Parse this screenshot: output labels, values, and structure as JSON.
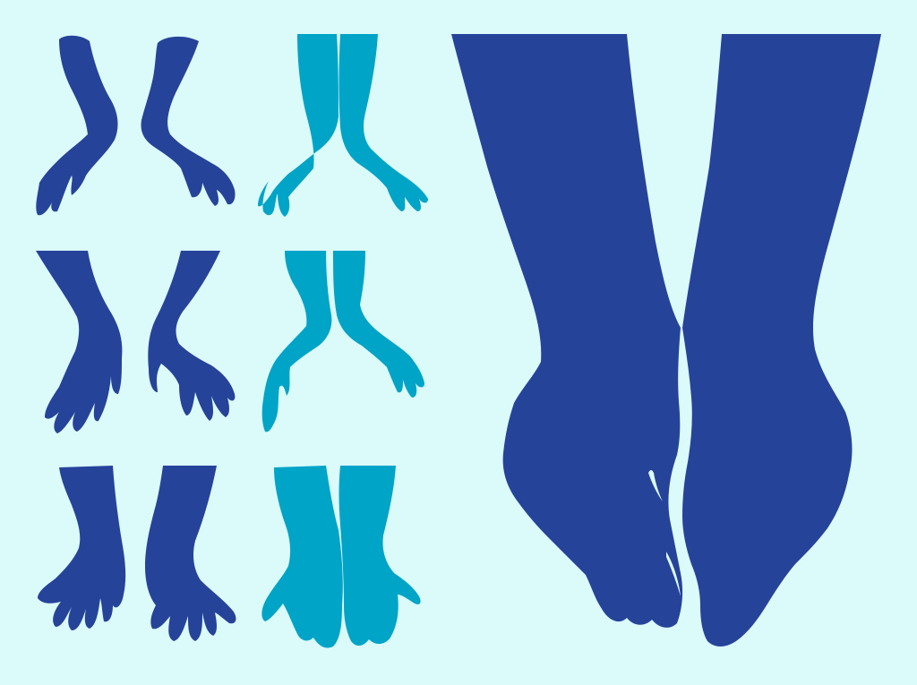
{
  "palette": {
    "background": "#dbfafa",
    "dark_blue": "#26439a",
    "light_blue": "#00a4c7"
  },
  "artwork": {
    "subject": "hand-silhouettes",
    "items": [
      {
        "icon": "hand-pair-icon",
        "color": "dark_blue"
      },
      {
        "icon": "hand-pair-icon",
        "color": "light_blue"
      },
      {
        "icon": "hand-pair-icon",
        "color": "dark_blue"
      },
      {
        "icon": "hand-pair-icon",
        "color": "light_blue"
      },
      {
        "icon": "hand-pair-icon",
        "color": "dark_blue"
      },
      {
        "icon": "hand-pair-icon",
        "color": "light_blue"
      },
      {
        "icon": "clasped-hands-icon",
        "color": "dark_blue"
      }
    ]
  }
}
